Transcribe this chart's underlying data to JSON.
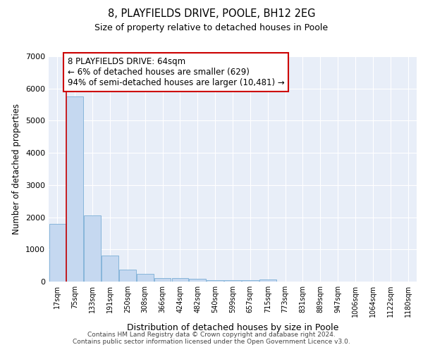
{
  "title1": "8, PLAYFIELDS DRIVE, POOLE, BH12 2EG",
  "title2": "Size of property relative to detached houses in Poole",
  "xlabel": "Distribution of detached houses by size in Poole",
  "ylabel": "Number of detached properties",
  "categories": [
    "17sqm",
    "75sqm",
    "133sqm",
    "191sqm",
    "250sqm",
    "308sqm",
    "366sqm",
    "424sqm",
    "482sqm",
    "540sqm",
    "599sqm",
    "657sqm",
    "715sqm",
    "773sqm",
    "831sqm",
    "889sqm",
    "947sqm",
    "1006sqm",
    "1064sqm",
    "1122sqm",
    "1180sqm"
  ],
  "values": [
    1800,
    5750,
    2050,
    820,
    370,
    230,
    110,
    100,
    80,
    50,
    50,
    50,
    70,
    0,
    0,
    0,
    0,
    0,
    0,
    0,
    0
  ],
  "bar_color": "#c5d8f0",
  "bar_edge_color": "#7aaed6",
  "vline_color": "#cc0000",
  "vline_x": 0.5,
  "annotation_text": "8 PLAYFIELDS DRIVE: 64sqm\n← 6% of detached houses are smaller (629)\n94% of semi-detached houses are larger (10,481) →",
  "annotation_box_color": "white",
  "annotation_box_edge_color": "#cc0000",
  "ylim": [
    0,
    7000
  ],
  "yticks": [
    0,
    1000,
    2000,
    3000,
    4000,
    5000,
    6000,
    7000
  ],
  "bg_color": "#e8eef8",
  "grid_color": "white",
  "footnote": "Contains HM Land Registry data © Crown copyright and database right 2024.\nContains public sector information licensed under the Open Government Licence v3.0."
}
